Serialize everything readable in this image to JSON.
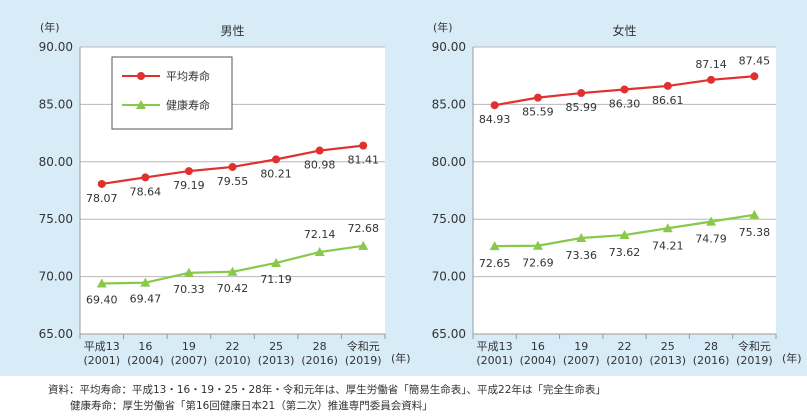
{
  "chart_data": [
    {
      "type": "line",
      "title": "男性",
      "ylabel_unit": "(年)",
      "xlabel_unit": "(年)",
      "ylim": [
        65,
        90
      ],
      "yticks": [
        "65.00",
        "70.00",
        "75.00",
        "80.00",
        "85.00",
        "90.00"
      ],
      "categories": [
        {
          "era": "平成13",
          "year": "(2001)"
        },
        {
          "era": "16",
          "year": "(2004)"
        },
        {
          "era": "19",
          "year": "(2007)"
        },
        {
          "era": "22",
          "year": "(2010)"
        },
        {
          "era": "25",
          "year": "(2013)"
        },
        {
          "era": "28",
          "year": "(2016)"
        },
        {
          "era": "令和元",
          "year": "(2019)"
        }
      ],
      "grid": true,
      "legend": "top-left",
      "series": [
        {
          "name": "平均寿命",
          "color": "#e03030",
          "marker": "circle",
          "values": [
            78.07,
            78.64,
            79.19,
            79.55,
            80.21,
            80.98,
            81.41
          ],
          "labels": [
            "78.07",
            "78.64",
            "79.19",
            "79.55",
            "80.21",
            "80.98",
            "81.41"
          ]
        },
        {
          "name": "健康寿命",
          "color": "#88c84a",
          "marker": "triangle",
          "values": [
            69.4,
            69.47,
            70.33,
            70.42,
            71.19,
            72.14,
            72.68
          ],
          "labels": [
            "69.40",
            "69.47",
            "70.33",
            "70.42",
            "71.19",
            "72.14",
            "72.68"
          ]
        }
      ]
    },
    {
      "type": "line",
      "title": "女性",
      "ylabel_unit": "(年)",
      "xlabel_unit": "(年)",
      "ylim": [
        65,
        90
      ],
      "yticks": [
        "65.00",
        "70.00",
        "75.00",
        "80.00",
        "85.00",
        "90.00"
      ],
      "categories": [
        {
          "era": "平成13",
          "year": "(2001)"
        },
        {
          "era": "16",
          "year": "(2004)"
        },
        {
          "era": "19",
          "year": "(2007)"
        },
        {
          "era": "22",
          "year": "(2010)"
        },
        {
          "era": "25",
          "year": "(2013)"
        },
        {
          "era": "28",
          "year": "(2016)"
        },
        {
          "era": "令和元",
          "year": "(2019)"
        }
      ],
      "grid": true,
      "series": [
        {
          "name": "平均寿命",
          "color": "#e03030",
          "marker": "circle",
          "values": [
            84.93,
            85.59,
            85.99,
            86.3,
            86.61,
            87.14,
            87.45
          ],
          "labels": [
            "84.93",
            "85.59",
            "85.99",
            "86.30",
            "86.61",
            "87.14",
            "87.45"
          ]
        },
        {
          "name": "健康寿命",
          "color": "#88c84a",
          "marker": "triangle",
          "values": [
            72.65,
            72.69,
            73.36,
            73.62,
            74.21,
            74.79,
            75.38
          ],
          "labels": [
            "72.65",
            "72.69",
            "73.36",
            "73.62",
            "74.21",
            "74.79",
            "75.38"
          ]
        }
      ]
    }
  ],
  "source": {
    "line1": "資料：平均寿命：平成13・16・19・25・28年・令和元年は、厚生労働省「簡易生命表」、平成22年は「完全生命表」",
    "line2": "健康寿命：厚生労働省「第16回健康日本21（第二次）推進専門委員会資料」"
  }
}
